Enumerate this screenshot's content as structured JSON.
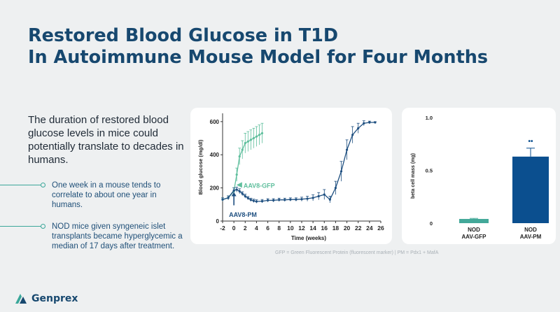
{
  "title": {
    "line1": "Restored Blood Glucose in T1D",
    "line2": "In Autoimmune Mouse Model for Four Months"
  },
  "lead": "The duration of restored blood glucose levels in mice could potentially translate to decades in humans.",
  "bullets": [
    "One week in a mouse tends to correlate to about one year in humans.",
    "NOD mice given syngeneic islet transplants became hyperglycemic a median of 17 days after treatment."
  ],
  "footnote": "GFP = Green Fluorescent Protein (fluorescent marker) | PM = Pdx1 + MafA",
  "logo": {
    "name": "Genprex",
    "mark": "logo-mark-icon"
  },
  "colors": {
    "title": "#17486f",
    "teal": "#3aa79a",
    "green_series": "#5fbf9d",
    "navy_series": "#1e4f80",
    "bar_gfp": "#43a899",
    "bar_pm": "#0b4f8f"
  },
  "chart_data": [
    {
      "type": "line",
      "xlabel": "Time (weeks)",
      "ylabel": "Blood glucose (mg/dl)",
      "xlim": [
        -2,
        26
      ],
      "ylim": [
        0,
        650
      ],
      "xticks": [
        "-2",
        "0",
        "2",
        "4",
        "6",
        "8",
        "10",
        "12",
        "14",
        "16",
        "18",
        "20",
        "22",
        "24",
        "26"
      ],
      "yticks": [
        "0",
        "200",
        "400",
        "600"
      ],
      "series": [
        {
          "name": "AAV8-GFP",
          "x": [
            -2,
            -1,
            0,
            0.5,
            1,
            1.5,
            2,
            2.5,
            3,
            3.5,
            4,
            4.5,
            5
          ],
          "y": [
            130,
            140,
            180,
            280,
            390,
            430,
            470,
            480,
            490,
            500,
            510,
            520,
            530
          ],
          "err": [
            10,
            12,
            20,
            40,
            50,
            55,
            60,
            60,
            60,
            60,
            60,
            60,
            60
          ]
        },
        {
          "name": "AAV8-PM",
          "x": [
            -2,
            -1,
            0,
            0.5,
            1,
            1.5,
            2,
            2.5,
            3,
            3.5,
            4,
            5,
            6,
            7,
            8,
            9,
            10,
            11,
            12,
            13,
            14,
            15,
            16,
            17,
            18,
            19,
            20,
            21,
            22,
            23,
            24,
            25
          ],
          "y": [
            130,
            140,
            185,
            190,
            180,
            165,
            150,
            138,
            128,
            122,
            118,
            120,
            125,
            125,
            128,
            128,
            130,
            130,
            132,
            135,
            140,
            150,
            160,
            130,
            200,
            300,
            430,
            520,
            560,
            590,
            595,
            595
          ],
          "err": [
            10,
            12,
            15,
            15,
            15,
            12,
            12,
            10,
            10,
            10,
            10,
            10,
            10,
            10,
            10,
            10,
            10,
            10,
            12,
            15,
            18,
            22,
            30,
            20,
            40,
            60,
            60,
            50,
            30,
            15,
            8,
            5
          ]
        }
      ],
      "annotations": [
        {
          "text": "AAV8-GFP",
          "x": 1.2,
          "y": 235
        },
        {
          "text": "AAV8-PM",
          "x": -0.5,
          "y": 60
        }
      ]
    },
    {
      "type": "bar",
      "categories": [
        "NOD\nAAV-GFP",
        "NOD\nAAV-PM"
      ],
      "category_lines": [
        [
          "NOD",
          "AAV-GFP"
        ],
        [
          "NOD",
          "AAV-PM"
        ]
      ],
      "values": [
        0.04,
        0.63
      ],
      "err": [
        0.005,
        0.08
      ],
      "ylabel": "beta cell mass (mg)",
      "ylim": [
        0,
        1.0
      ],
      "yticks": [
        "0",
        "0.5",
        "1.0"
      ],
      "significance": "••"
    }
  ]
}
